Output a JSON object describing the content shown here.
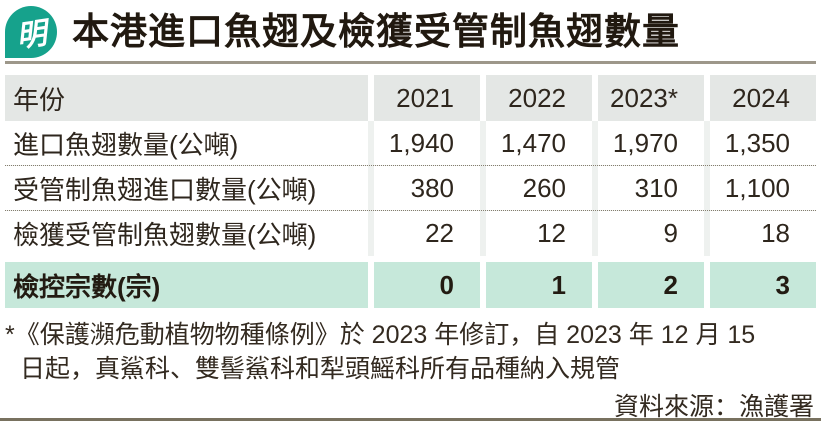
{
  "brand": {
    "logo_char": "明",
    "logo_color": "#16a28c"
  },
  "title": "本港進口魚翅及檢獲受管制魚翅數量",
  "chart_data": {
    "type": "table",
    "title": "本港進口魚翅及檢獲受管制魚翅數量",
    "columns": [
      "年份",
      "2021",
      "2022",
      "2023*",
      "2024"
    ],
    "rows": [
      [
        "進口魚翅數量(公噸)",
        "1,940",
        "1,470",
        "1,970",
        "1,350"
      ],
      [
        "受管制魚翅進口數量(公噸)",
        "380",
        "260",
        "310",
        "1,100"
      ],
      [
        "檢獲受管制魚翅數量(公噸)",
        "22",
        "12",
        "9",
        "18"
      ],
      [
        "檢控宗數(宗)",
        "0",
        "1",
        "2",
        "3"
      ]
    ],
    "highlight_row_index": 3,
    "notes": "*《保護瀕危動植物物種條例》於 2023 年修訂，自 2023 年 12 月 15 日起，真鯊科、雙髻鯊科和犁頭鰩科所有品種納入規管",
    "source": "資料來源：漁護署",
    "layout": {
      "header_bg": "#e4e7e5",
      "highlight_bg": "#c6e8da",
      "row_separator": "dotted"
    }
  },
  "footnote": {
    "line1": "*《保護瀕危動植物物種條例》於 2023 年修訂，自 2023 年 12 月 15",
    "line2": "日起，真鯊科、雙髻鯊科和犁頭鰩科所有品種納入規管"
  },
  "source": "資料來源：漁護署",
  "colors": {
    "accent_teal": "#16a28c",
    "header_gray": "#e4e7e5",
    "highlight_teal": "#c6e8da",
    "rule_top": "#9d978a",
    "rule_bottom": "#78715f",
    "text": "#2b241c"
  }
}
